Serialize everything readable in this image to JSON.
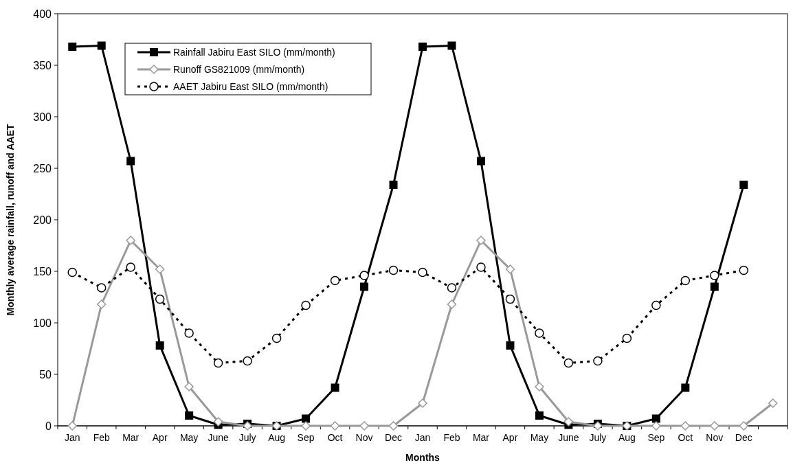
{
  "chart_data": {
    "type": "line",
    "xlabel": "Months",
    "ylabel": "Monthly average rainfall, runoff and AAET",
    "categories": [
      "Jan",
      "Feb",
      "Mar",
      "Apr",
      "May",
      "June",
      "July",
      "Aug",
      "Sep",
      "Oct",
      "Nov",
      "Dec",
      "Jan",
      "Feb",
      "Mar",
      "Apr",
      "May",
      "June",
      "July",
      "Aug",
      "Sep",
      "Oct",
      "Nov",
      "Dec",
      null
    ],
    "series": [
      {
        "name": "Rainfall Jabiru East SILO (mm/month)",
        "color": "#000000",
        "marker": "square",
        "line_style": "solid",
        "values": [
          368,
          369,
          257,
          78,
          10,
          1,
          2,
          0,
          7,
          37,
          135,
          234,
          368,
          369,
          257,
          78,
          10,
          1,
          2,
          0,
          7,
          37,
          135,
          234,
          null
        ]
      },
      {
        "name": "Runoff GS821009 (mm/month)",
        "color": "#999999",
        "marker": "diamond",
        "line_style": "solid",
        "values": [
          0,
          118,
          180,
          152,
          38,
          4,
          0,
          0,
          0,
          0,
          0,
          0,
          22,
          118,
          180,
          152,
          38,
          4,
          0,
          0,
          0,
          0,
          0,
          0,
          22
        ]
      },
      {
        "name": "AAET Jabiru East SILO (mm/month)",
        "color": "#000000",
        "marker": "circle",
        "line_style": "dotted",
        "values": [
          149,
          134,
          154,
          123,
          90,
          61,
          63,
          85,
          117,
          141,
          146,
          151,
          149,
          134,
          154,
          123,
          90,
          61,
          63,
          85,
          117,
          141,
          146,
          151,
          null
        ]
      }
    ],
    "ylim": [
      0,
      400
    ],
    "yticks": [
      0,
      50,
      100,
      150,
      200,
      250,
      300,
      350,
      400
    ],
    "grid": false,
    "legend": "top left"
  }
}
